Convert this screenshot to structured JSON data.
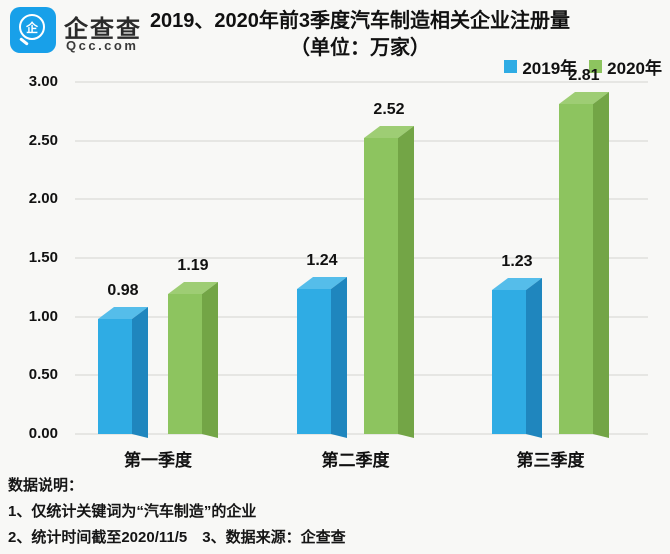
{
  "brand": {
    "name": "企查查",
    "domain": "Qcc.com",
    "logo_glyph": "企",
    "logo_color": "#18a0e9"
  },
  "title": {
    "line1": "2019、2020年前3季度汽车制造相关企业注册量",
    "line2": "（单位：万家）"
  },
  "legend": [
    {
      "label": "2019年",
      "color": "#2face4"
    },
    {
      "label": "2020年",
      "color": "#8dc45f"
    }
  ],
  "chart_data": {
    "type": "bar",
    "title": "2019、2020年前3季度汽车制造相关企业注册量",
    "unit": "万家",
    "categories": [
      "第一季度",
      "第二季度",
      "第三季度"
    ],
    "series": [
      {
        "name": "2019年",
        "values": [
          0.98,
          1.24,
          1.23
        ],
        "color": "#2face4",
        "side_color": "#1f86be",
        "top_color": "#55bdea"
      },
      {
        "name": "2020年",
        "values": [
          1.19,
          2.52,
          2.81
        ],
        "color": "#8dc45f",
        "side_color": "#73a546",
        "top_color": "#9ecd74"
      }
    ],
    "ylim": [
      0,
      3
    ],
    "ytick_step": 0.5,
    "ytick_labels": [
      "0.00",
      "0.50",
      "1.00",
      "1.50",
      "2.00",
      "2.50",
      "3.00"
    ],
    "grid": true,
    "legend_position": "top-right",
    "value_label_decimals": 2
  },
  "notes": {
    "heading": "数据说明：",
    "line1": "1、仅统计关键词为“汽车制造”的企业",
    "line2": "2、统计时间截至2020/11/5　3、数据来源：企查查"
  }
}
